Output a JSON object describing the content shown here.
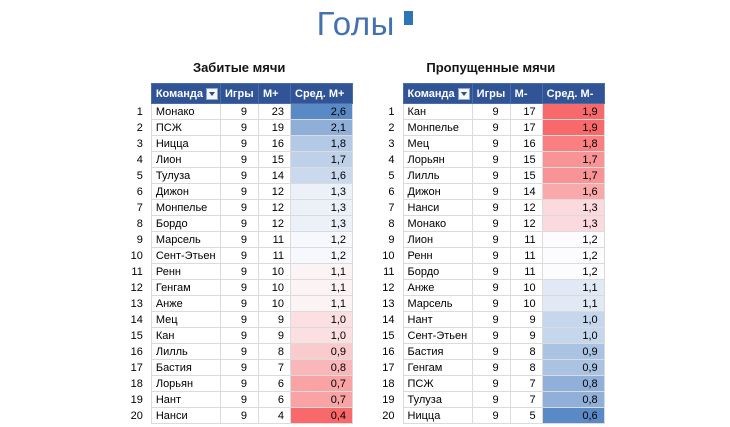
{
  "page_title": "Голы",
  "colors": {
    "title": "#4472B0",
    "title_marker": "#2E75B6",
    "table_header_bg": "#305496",
    "table_header_text": "#FFFFFF",
    "scale_max_blue": "#5A8AC6",
    "scale_mid_white": "#FCFCFF",
    "scale_min_red": "#F8696B"
  },
  "chart_data": [
    {
      "type": "table",
      "title": "Забитые мячи",
      "columns": [
        "Команда",
        "Игры",
        "М+",
        "Сред. М+"
      ],
      "legend": "color scale on Сред. М+: high=blue, low=red",
      "rows": [
        {
          "rank": 1,
          "team": "Монако",
          "games": 9,
          "value": 23,
          "avg": "2,6",
          "avg_color": "#5A8AC6"
        },
        {
          "rank": 2,
          "team": "ПСЖ",
          "games": 9,
          "value": 19,
          "avg": "2,1",
          "avg_color": "#8FAFD9"
        },
        {
          "rank": 3,
          "team": "Ницца",
          "games": 9,
          "value": 16,
          "avg": "1,8",
          "avg_color": "#B3C9E5"
        },
        {
          "rank": 4,
          "team": "Лион",
          "games": 9,
          "value": 15,
          "avg": "1,7",
          "avg_color": "#BFD1E9"
        },
        {
          "rank": 5,
          "team": "Тулуза",
          "games": 9,
          "value": 14,
          "avg": "1,6",
          "avg_color": "#CBD9EE"
        },
        {
          "rank": 6,
          "team": "Дижон",
          "games": 9,
          "value": 12,
          "avg": "1,3",
          "avg_color": "#EBF0F9"
        },
        {
          "rank": 7,
          "team": "Монпелье",
          "games": 9,
          "value": 12,
          "avg": "1,3",
          "avg_color": "#EBF0F9"
        },
        {
          "rank": 8,
          "team": "Бордо",
          "games": 9,
          "value": 12,
          "avg": "1,3",
          "avg_color": "#EBF0F9"
        },
        {
          "rank": 9,
          "team": "Марсель",
          "games": 9,
          "value": 11,
          "avg": "1,2",
          "avg_color": "#F6F8FD"
        },
        {
          "rank": 10,
          "team": "Сент-Этьен",
          "games": 9,
          "value": 11,
          "avg": "1,2",
          "avg_color": "#F6F8FD"
        },
        {
          "rank": 11,
          "team": "Ренн",
          "games": 9,
          "value": 10,
          "avg": "1,1",
          "avg_color": "#FCF3F4"
        },
        {
          "rank": 12,
          "team": "Генгам",
          "games": 9,
          "value": 10,
          "avg": "1,1",
          "avg_color": "#FCF3F4"
        },
        {
          "rank": 13,
          "team": "Анже",
          "games": 9,
          "value": 10,
          "avg": "1,1",
          "avg_color": "#FCF3F4"
        },
        {
          "rank": 14,
          "team": "Мец",
          "games": 9,
          "value": 9,
          "avg": "1,0",
          "avg_color": "#FBDFE1"
        },
        {
          "rank": 15,
          "team": "Кан",
          "games": 9,
          "value": 9,
          "avg": "1,0",
          "avg_color": "#FBDFE1"
        },
        {
          "rank": 16,
          "team": "Лилль",
          "games": 9,
          "value": 8,
          "avg": "0,9",
          "avg_color": "#FACBCD"
        },
        {
          "rank": 17,
          "team": "Бастия",
          "games": 9,
          "value": 7,
          "avg": "0,8",
          "avg_color": "#FAB7B9"
        },
        {
          "rank": 18,
          "team": "Лорьян",
          "games": 9,
          "value": 6,
          "avg": "0,7",
          "avg_color": "#F9A3A5"
        },
        {
          "rank": 19,
          "team": "Нант",
          "games": 9,
          "value": 6,
          "avg": "0,7",
          "avg_color": "#F9A3A5"
        },
        {
          "rank": 20,
          "team": "Нанси",
          "games": 9,
          "value": 4,
          "avg": "0,4",
          "avg_color": "#F8696B"
        }
      ]
    },
    {
      "type": "table",
      "title": "Пропущенные мячи",
      "columns": [
        "Команда",
        "Игры",
        "М-",
        "Сред. М-"
      ],
      "legend": "color scale on Сред. М-: high=red, low=blue",
      "rows": [
        {
          "rank": 1,
          "team": "Кан",
          "games": 9,
          "value": 17,
          "avg": "1,9",
          "avg_color": "#F8696B"
        },
        {
          "rank": 2,
          "team": "Монпелье",
          "games": 9,
          "value": 17,
          "avg": "1,9",
          "avg_color": "#F8696B"
        },
        {
          "rank": 3,
          "team": "Мец",
          "games": 9,
          "value": 16,
          "avg": "1,8",
          "avg_color": "#F97F81"
        },
        {
          "rank": 4,
          "team": "Лорьян",
          "games": 9,
          "value": 15,
          "avg": "1,7",
          "avg_color": "#F99496"
        },
        {
          "rank": 5,
          "team": "Лилль",
          "games": 9,
          "value": 15,
          "avg": "1,7",
          "avg_color": "#F99496"
        },
        {
          "rank": 6,
          "team": "Дижон",
          "games": 9,
          "value": 14,
          "avg": "1,6",
          "avg_color": "#FAA9AB"
        },
        {
          "rank": 7,
          "team": "Нанси",
          "games": 9,
          "value": 12,
          "avg": "1,3",
          "avg_color": "#FBD9DC"
        },
        {
          "rank": 8,
          "team": "Монако",
          "games": 9,
          "value": 12,
          "avg": "1,3",
          "avg_color": "#FBD9DC"
        },
        {
          "rank": 9,
          "team": "Лион",
          "games": 9,
          "value": 11,
          "avg": "1,2",
          "avg_color": "#FCFCFF"
        },
        {
          "rank": 10,
          "team": "Ренн",
          "games": 9,
          "value": 11,
          "avg": "1,2",
          "avg_color": "#FCFCFF"
        },
        {
          "rank": 11,
          "team": "Бордо",
          "games": 9,
          "value": 11,
          "avg": "1,2",
          "avg_color": "#FCFCFF"
        },
        {
          "rank": 12,
          "team": "Анже",
          "games": 9,
          "value": 10,
          "avg": "1,1",
          "avg_color": "#E1E9F5"
        },
        {
          "rank": 13,
          "team": "Марсель",
          "games": 9,
          "value": 10,
          "avg": "1,1",
          "avg_color": "#E1E9F5"
        },
        {
          "rank": 14,
          "team": "Нант",
          "games": 9,
          "value": 9,
          "avg": "1,0",
          "avg_color": "#C6D6EC"
        },
        {
          "rank": 15,
          "team": "Сент-Этьен",
          "games": 9,
          "value": 9,
          "avg": "1,0",
          "avg_color": "#C6D6EC"
        },
        {
          "rank": 16,
          "team": "Бастия",
          "games": 9,
          "value": 8,
          "avg": "0,9",
          "avg_color": "#ABC3E3"
        },
        {
          "rank": 17,
          "team": "Генгам",
          "games": 9,
          "value": 8,
          "avg": "0,9",
          "avg_color": "#ABC3E3"
        },
        {
          "rank": 18,
          "team": "ПСЖ",
          "games": 9,
          "value": 7,
          "avg": "0,8",
          "avg_color": "#90B0D9"
        },
        {
          "rank": 19,
          "team": "Тулуза",
          "games": 9,
          "value": 7,
          "avg": "0,8",
          "avg_color": "#90B0D9"
        },
        {
          "rank": 20,
          "team": "Ницца",
          "games": 9,
          "value": 5,
          "avg": "0,6",
          "avg_color": "#5A8AC6"
        }
      ]
    }
  ]
}
